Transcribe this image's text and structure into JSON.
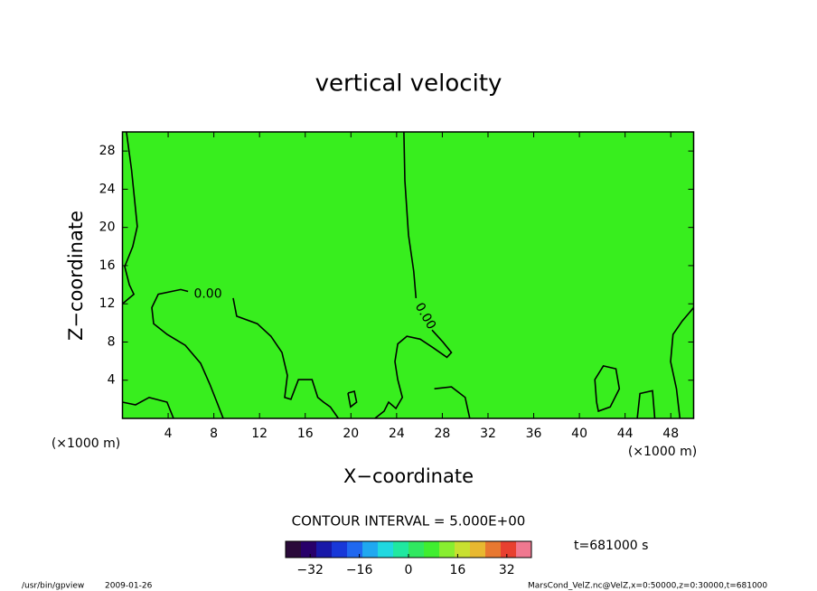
{
  "chart_data": {
    "type": "contour",
    "title": "vertical velocity",
    "xlabel": "X−coordinate",
    "ylabel": "Z−coordinate",
    "x_unit_label": "(×1000 m)",
    "x_unit_label_right": "(×1000 m)",
    "xlim": [
      0,
      50
    ],
    "ylim": [
      0,
      30
    ],
    "xticks": [
      4,
      8,
      12,
      16,
      20,
      24,
      28,
      32,
      36,
      40,
      44,
      48
    ],
    "yticks": [
      4,
      8,
      12,
      16,
      20,
      24,
      28
    ],
    "fill_color": "#38ee1e",
    "line_color": "#000000",
    "contours": [
      {
        "x": [
          0.35,
          0.8,
          1.3,
          0.9,
          0.2,
          0.6,
          1.0,
          0
        ],
        "z": [
          30,
          26,
          20.1,
          18,
          15.9,
          14,
          13,
          12
        ]
      },
      {
        "x": [
          8.82,
          8.27,
          7.64,
          6.84,
          5.5,
          3.92,
          2.73,
          2.57,
          3.13,
          5.1,
          5.74,
          null,
          9.69,
          10.0,
          11.8,
          13.0,
          13.96,
          14.44,
          14.2,
          14.75,
          15.4,
          16.6,
          17.1,
          17.6,
          18.2,
          18.9
        ],
        "z": [
          0,
          1.7,
          3.6,
          5.76,
          7.66,
          8.79,
          9.92,
          11.6,
          13.0,
          13.5,
          13.3,
          null,
          12.6,
          10.7,
          9.92,
          8.6,
          6.9,
          4.5,
          2.2,
          2.0,
          4.06,
          4.06,
          2.2,
          1.7,
          1.2,
          0
        ]
      },
      {
        "x": [
          24.64,
          24.72,
          25.04,
          25.5,
          25.7,
          null,
          27.1,
          28.05,
          28.8,
          28.4,
          27.2,
          26.06,
          24.9,
          24.1,
          23.85,
          24.1,
          24.5,
          23.94,
          23.3,
          22.9,
          22.1
        ],
        "z": [
          29.96,
          24.9,
          19.2,
          15.4,
          12.6,
          null,
          9.26,
          8.0,
          6.9,
          6.4,
          7.4,
          8.3,
          8.6,
          7.8,
          5.95,
          4.06,
          2.2,
          1.04,
          1.7,
          0.76,
          0
        ]
      },
      {
        "x": [
          50,
          49.0,
          48.2,
          47.98,
          48.5,
          48.8
        ],
        "z": [
          11.6,
          10.2,
          8.8,
          5.95,
          3.1,
          0
        ]
      },
      {
        "x": [
          41.5,
          41.35,
          42.1,
          43.2,
          43.5,
          42.7,
          41.66,
          41.5
        ],
        "z": [
          1.7,
          4.06,
          5.5,
          5.2,
          3.1,
          1.2,
          0.76,
          1.7
        ]
      },
      {
        "x": [
          27.3,
          28.8,
          30.0,
          30.4
        ],
        "z": [
          3.1,
          3.3,
          2.2,
          0
        ]
      },
      {
        "x": [
          45.06,
          45.3,
          46.4,
          46.6
        ],
        "z": [
          0,
          2.6,
          2.9,
          0
        ]
      },
      {
        "x": [
          0,
          1.15,
          2.33,
          3.9,
          4.47
        ],
        "z": [
          1.7,
          1.42,
          2.2,
          1.7,
          0
        ]
      },
      {
        "x": [
          19.74,
          20.3,
          20.5,
          19.97,
          19.74
        ],
        "z": [
          2.65,
          2.84,
          1.7,
          1.2,
          2.65
        ]
      }
    ],
    "contour_labels": [
      {
        "label": "0.00",
        "level": 0,
        "x": 7.48,
        "z": 13.0
      },
      {
        "label": "0.00",
        "level": 0,
        "x": 26.5,
        "z": 10.7,
        "rotate": 60
      }
    ],
    "contour_interval": "CONTOUR INTERVAL = 5.000E+00",
    "time_label": "t=681000 s",
    "colorbar": {
      "lim": [
        -40,
        40
      ],
      "ticks": [
        {
          "value": -32,
          "label": "−32"
        },
        {
          "value": -16,
          "label": "−16"
        },
        0,
        16,
        32
      ],
      "colors": [
        "#2a0a3a",
        "#28006a",
        "#1818a8",
        "#1838d8",
        "#2068f0",
        "#20a8f0",
        "#20d8e0",
        "#20e8a0",
        "#30e860",
        "#40ee30",
        "#88ee30",
        "#c8e030",
        "#e8b830",
        "#e87830",
        "#e84030",
        "#f07890"
      ]
    },
    "footer_left": [
      "/usr/bin/gpview",
      "2009-01-26"
    ],
    "footer_right": "MarsCond_VelZ.nc@VelZ,x=0:50000,z=0:30000,t=681000"
  }
}
